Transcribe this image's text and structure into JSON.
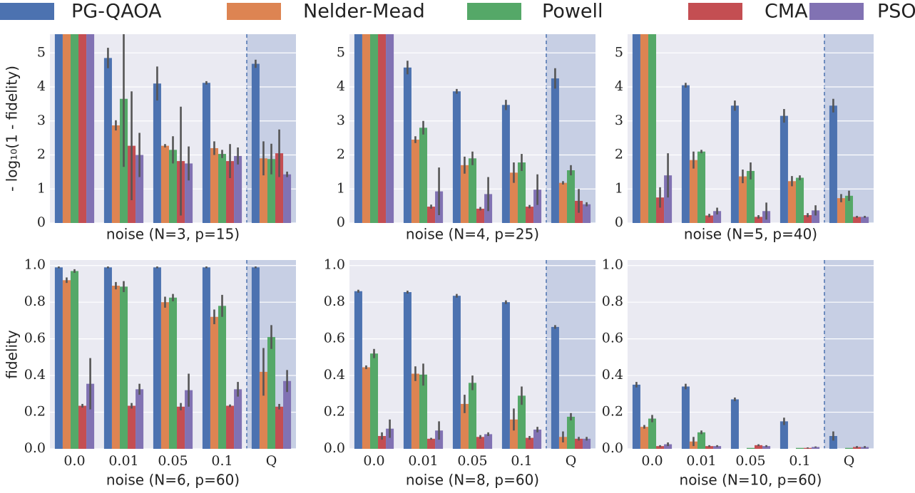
{
  "legend": [
    {
      "name": "PG-QAOA",
      "color": "#4c72b0"
    },
    {
      "name": "Nelder-Mead",
      "color": "#dd8452"
    },
    {
      "name": "Powell",
      "color": "#55a868"
    },
    {
      "name": "CMA",
      "color": "#c44e52"
    },
    {
      "name": "PSO",
      "color": "#8172b3"
    }
  ],
  "chart_data": [
    {
      "type": "bar",
      "xlabel": "noise (N=3, p=15)",
      "ylabel": "- log₁₀(1 - fidelity)",
      "ylim": [
        0,
        5.55
      ],
      "yticks": [
        0,
        1,
        2,
        3,
        4,
        5
      ],
      "grid": true,
      "shade_last": true,
      "series": [
        {
          "values": [
            6,
            4.85,
            4.1,
            4.12,
            4.68
          ],
          "errors": [
            0,
            0.3,
            0.5,
            0.05,
            0.12
          ]
        },
        {
          "values": [
            6,
            2.87,
            2.27,
            2.2,
            1.9
          ],
          "errors": [
            0,
            0.15,
            0.05,
            0.2,
            0.5
          ]
        },
        {
          "values": [
            6,
            3.65,
            2.15,
            2.03,
            1.88
          ],
          "errors": [
            0,
            2,
            0.4,
            0.12,
            0.45
          ]
        },
        {
          "values": [
            6,
            2.27,
            1.82,
            1.82,
            2.05
          ],
          "errors": [
            0,
            1.6,
            1.6,
            0.5,
            0.7
          ]
        },
        {
          "values": [
            6,
            2.0,
            1.75,
            1.97,
            1.43
          ],
          "errors": [
            0,
            0.65,
            0.5,
            0.25,
            0.08
          ]
        }
      ]
    },
    {
      "type": "bar",
      "xlabel": "noise (N=4, p=25)",
      "ylim": [
        0,
        5.55
      ],
      "yticks": [
        0,
        1,
        2,
        3,
        4,
        5
      ],
      "grid": true,
      "shade_last": true,
      "series": [
        {
          "values": [
            6,
            4.57,
            3.87,
            3.47,
            4.25
          ],
          "errors": [
            0,
            0.2,
            0.07,
            0.15,
            0.3
          ]
        },
        {
          "values": [
            6,
            2.45,
            1.7,
            1.48,
            1.18
          ],
          "errors": [
            0,
            0.1,
            0.25,
            0.3,
            0.05
          ]
        },
        {
          "values": [
            6,
            2.8,
            1.9,
            1.78,
            1.55
          ],
          "errors": [
            0,
            0.2,
            0.2,
            0.25,
            0.15
          ]
        },
        {
          "values": [
            6,
            0.48,
            0.42,
            0.48,
            0.65
          ],
          "errors": [
            0,
            0.06,
            0.05,
            0.05,
            0.35
          ]
        },
        {
          "values": [
            6,
            0.93,
            0.85,
            0.98,
            0.55
          ],
          "errors": [
            0,
            0.7,
            0.5,
            0.45,
            0.06
          ]
        }
      ]
    },
    {
      "type": "bar",
      "xlabel": "noise (N=5, p=40)",
      "ylim": [
        0,
        5.55
      ],
      "yticks": [
        0,
        1,
        2,
        3,
        4,
        5
      ],
      "grid": true,
      "shade_last": true,
      "series": [
        {
          "values": [
            6,
            4.05,
            3.45,
            3.15,
            3.45
          ],
          "errors": [
            0,
            0.07,
            0.15,
            0.2,
            0.2
          ]
        },
        {
          "values": [
            6,
            1.85,
            1.37,
            1.23,
            0.73
          ],
          "errors": [
            0,
            0.25,
            0.2,
            0.15,
            0.12
          ]
        },
        {
          "values": [
            6,
            2.1,
            1.53,
            1.33,
            0.8
          ],
          "errors": [
            0,
            0.05,
            0.25,
            0.07,
            0.15
          ]
        },
        {
          "values": [
            0.75,
            0.22,
            0.18,
            0.23,
            0.18
          ],
          "errors": [
            0.3,
            0.05,
            0.05,
            0.06,
            0.03
          ]
        },
        {
          "values": [
            1.4,
            0.35,
            0.35,
            0.37,
            0.18
          ],
          "errors": [
            0.65,
            0.1,
            0.25,
            0.15,
            0.03
          ]
        }
      ]
    },
    {
      "type": "bar",
      "xlabel": "noise (N=6, p=60)",
      "ylabel": "fidelity",
      "categories": [
        "0.0",
        "0.01",
        "0.05",
        "0.1",
        "Q"
      ],
      "ylim": [
        0,
        1.03
      ],
      "yticks": [
        {
          "value": 0,
          "label": "0.0"
        },
        0.2,
        0.4,
        0.6,
        0.8,
        {
          "value": 1,
          "label": "1.0"
        }
      ],
      "grid": true,
      "shade_last": true,
      "series": [
        {
          "values": [
            0.99,
            0.99,
            0.99,
            0.99,
            0.99
          ],
          "errors": [
            0.005,
            0.005,
            0.005,
            0.005,
            0.005
          ]
        },
        {
          "values": [
            0.92,
            0.89,
            0.8,
            0.72,
            0.42
          ],
          "errors": [
            0.015,
            0.02,
            0.03,
            0.04,
            0.13
          ]
        },
        {
          "values": [
            0.97,
            0.885,
            0.825,
            0.78,
            0.61
          ],
          "errors": [
            0.01,
            0.03,
            0.02,
            0.06,
            0.065
          ]
        },
        {
          "values": [
            0.235,
            0.235,
            0.23,
            0.235,
            0.23
          ],
          "errors": [
            0.01,
            0.015,
            0.02,
            0.007,
            0.015
          ]
        },
        {
          "values": [
            0.355,
            0.325,
            0.32,
            0.325,
            0.37
          ],
          "errors": [
            0.14,
            0.03,
            0.09,
            0.04,
            0.06
          ]
        }
      ]
    },
    {
      "type": "bar",
      "xlabel": "noise (N=8, p=60)",
      "categories": [
        "0.0",
        "0.01",
        "0.05",
        "0.1",
        "Q"
      ],
      "ylim": [
        0,
        1.03
      ],
      "yticks": [
        {
          "value": 0,
          "label": "0.0"
        },
        0.2,
        0.4,
        0.6,
        0.8,
        {
          "value": 1,
          "label": "1.0"
        }
      ],
      "grid": true,
      "shade_last": true,
      "series": [
        {
          "values": [
            0.86,
            0.855,
            0.835,
            0.8,
            0.665
          ],
          "errors": [
            0.008,
            0.008,
            0.01,
            0.01,
            0.01
          ]
        },
        {
          "values": [
            0.445,
            0.41,
            0.245,
            0.16,
            0.065
          ],
          "errors": [
            0.01,
            0.04,
            0.05,
            0.06,
            0.03
          ]
        },
        {
          "values": [
            0.52,
            0.405,
            0.36,
            0.29,
            0.175
          ],
          "errors": [
            0.025,
            0.06,
            0.04,
            0.05,
            0.02
          ]
        },
        {
          "values": [
            0.07,
            0.055,
            0.065,
            0.06,
            0.055
          ],
          "errors": [
            0.02,
            0.005,
            0.01,
            0.01,
            0.01
          ]
        },
        {
          "values": [
            0.11,
            0.1,
            0.08,
            0.105,
            0.055
          ],
          "errors": [
            0.05,
            0.05,
            0.01,
            0.015,
            0.01
          ]
        }
      ]
    },
    {
      "type": "bar",
      "xlabel": "noise (N=10, p=60)",
      "categories": [
        "0.0",
        "0.01",
        "0.05",
        "0.1",
        "Q"
      ],
      "ylim": [
        0,
        1.03
      ],
      "yticks": [
        {
          "value": 0,
          "label": "0.0"
        },
        0.2,
        0.4,
        0.6,
        0.8,
        {
          "value": 1,
          "label": "1.0"
        }
      ],
      "grid": true,
      "shade_last": true,
      "series": [
        {
          "values": [
            0.35,
            0.34,
            0.27,
            0.15,
            0.07
          ],
          "errors": [
            0.015,
            0.015,
            0.01,
            0.02,
            0.025
          ]
        },
        {
          "values": [
            0.12,
            0.04,
            0,
            0,
            0
          ],
          "errors": [
            0.01,
            0.025,
            0,
            0,
            0
          ]
        },
        {
          "values": [
            0.165,
            0.09,
            0.005,
            0.005,
            0.005
          ],
          "errors": [
            0.02,
            0.01,
            0,
            0,
            0
          ]
        },
        {
          "values": [
            0.015,
            0.015,
            0.02,
            0.005,
            0.01
          ],
          "errors": [
            0.005,
            0.005,
            0.005,
            0.003,
            0.005
          ]
        },
        {
          "values": [
            0.025,
            0.015,
            0.015,
            0.01,
            0.01
          ],
          "errors": [
            0.01,
            0.005,
            0.005,
            0.003,
            0.005
          ]
        }
      ]
    }
  ]
}
